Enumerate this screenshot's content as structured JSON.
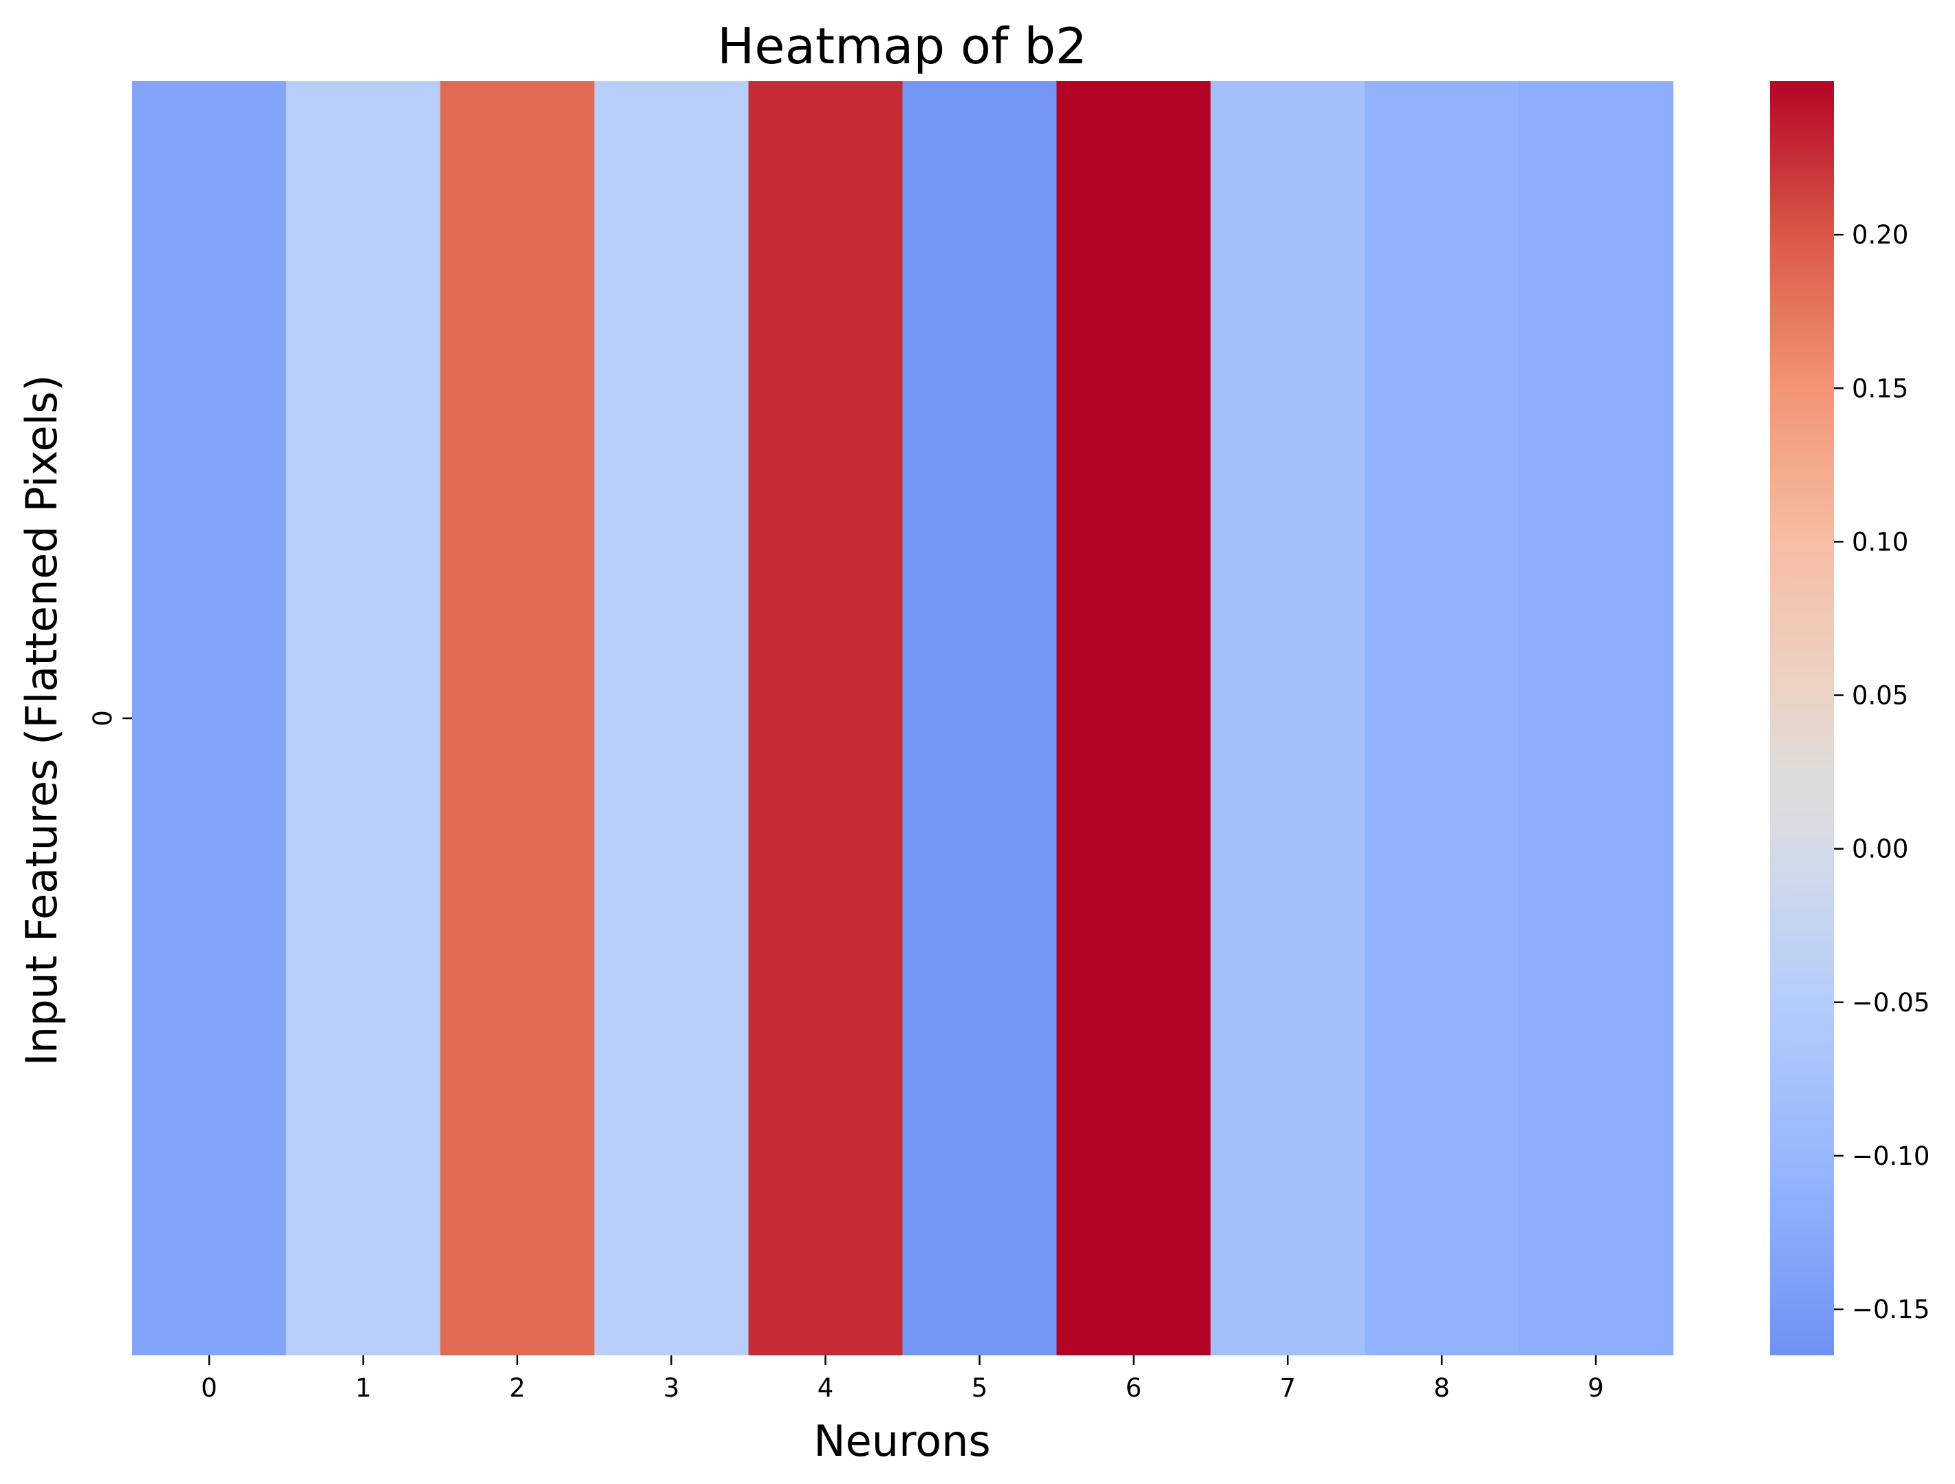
{
  "chart_data": {
    "type": "heatmap",
    "title": "Heatmap of b2",
    "xlabel": "Neurons",
    "ylabel": "Input Features (Flattened Pixels)",
    "x_categories": [
      "0",
      "1",
      "2",
      "3",
      "4",
      "5",
      "6",
      "7",
      "8",
      "9"
    ],
    "y_categories": [
      "0"
    ],
    "values": [
      [
        -0.135,
        -0.045,
        0.185,
        -0.045,
        0.227,
        -0.158,
        0.25,
        -0.08,
        -0.11,
        -0.118
      ]
    ],
    "colormap": "coolwarm",
    "colorbar": {
      "vmin": -0.165,
      "vmax": 0.25,
      "ticks": [
        0.2,
        0.15,
        0.1,
        0.05,
        0.0,
        -0.05,
        -0.1,
        -0.15
      ],
      "tick_labels": [
        "0.20",
        "0.15",
        "0.10",
        "0.05",
        "0.00",
        "−0.05",
        "−0.10",
        "−0.15"
      ]
    },
    "grid": false,
    "legend": "colorbar-right"
  }
}
